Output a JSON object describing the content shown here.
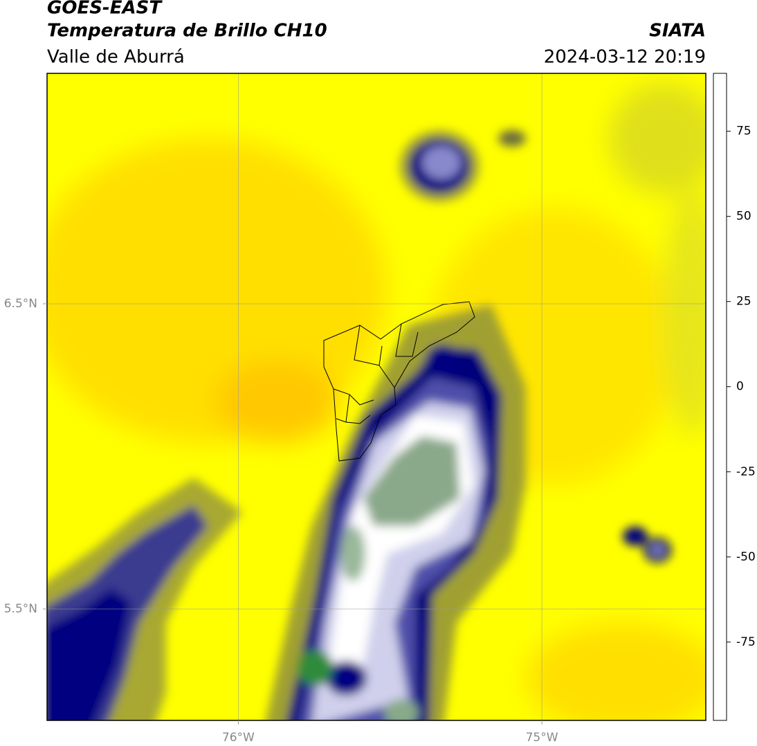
{
  "header": {
    "title": "GOES-EAST",
    "subtitle": "Temperatura de Brillo CH10",
    "region": "Valle de Aburrá",
    "source": "SIATA",
    "timestamp": "2024-03-12 20:19"
  },
  "map": {
    "lonlim": [
      -76.63,
      -74.46
    ],
    "latlim": [
      5.135,
      7.255
    ],
    "lon_ticks": [
      {
        "value": -76,
        "label": "76°W"
      },
      {
        "value": -75,
        "label": "75°W"
      }
    ],
    "lat_ticks": [
      {
        "value": 6.5,
        "label": "6.5°N"
      },
      {
        "value": 5.5,
        "label": "5.5°N"
      }
    ]
  },
  "colorbar": {
    "lim": [
      -98,
      92
    ],
    "ticks": [
      75,
      50,
      25,
      0,
      -25,
      -50,
      -75
    ],
    "stops": [
      {
        "value": -98,
        "color": "#ffffff"
      },
      {
        "value": -93,
        "color": "#ffffff"
      },
      {
        "value": -93,
        "color": "#00f0e0"
      },
      {
        "value": -80,
        "color": "#1fb09a"
      },
      {
        "value": -70,
        "color": "#2e8b3a"
      },
      {
        "value": -62,
        "color": "#4a8a3a"
      },
      {
        "value": -55,
        "color": "#c8dcc8"
      },
      {
        "value": -50,
        "color": "#ffffff"
      },
      {
        "value": -42,
        "color": "#8888cc"
      },
      {
        "value": -32,
        "color": "#303099"
      },
      {
        "value": -25,
        "color": "#000080"
      },
      {
        "value": -22,
        "color": "#6b6b40"
      },
      {
        "value": -17,
        "color": "#c8c800"
      },
      {
        "value": -13,
        "color": "#ffff00"
      },
      {
        "value": -5,
        "color": "#ffb000"
      },
      {
        "value": 3,
        "color": "#ff6000"
      },
      {
        "value": 8,
        "color": "#ff0000"
      },
      {
        "value": 8,
        "color": "#000000"
      },
      {
        "value": 92,
        "color": "#000000"
      }
    ]
  }
}
